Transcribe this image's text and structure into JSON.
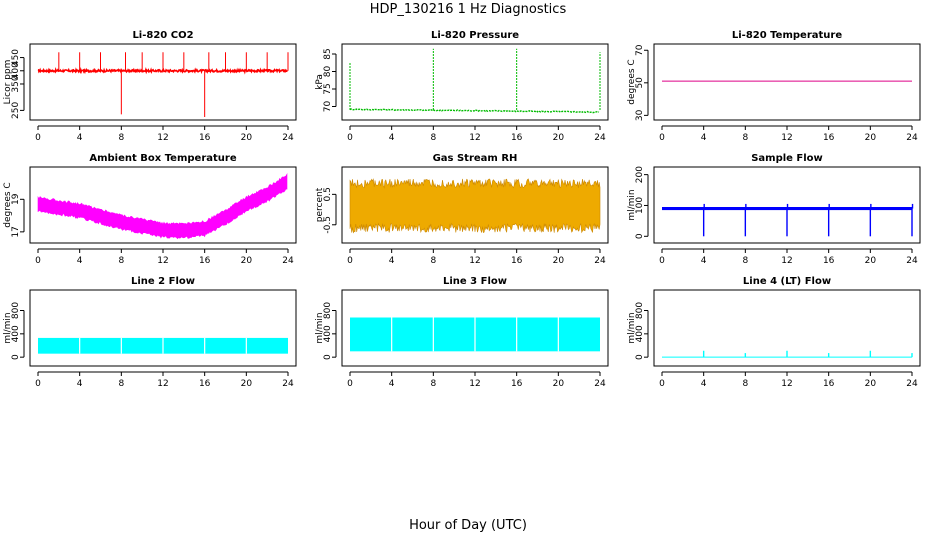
{
  "title": "HDP_130216  1 Hz Diagnostics",
  "xlabel": "Hour of Day (UTC)",
  "colors": {
    "co2": "#ff0000",
    "pressure": "#00bb00",
    "temperature": "#dd0088",
    "ambient": "#ff00ff",
    "rh": "#eeaa00",
    "sample_flow": "#0000ff",
    "line_flow": "#00ffff"
  },
  "chart_data": [
    {
      "type": "line",
      "title": "Li-820 CO2",
      "ylabel": "Licor ppm",
      "x_ticks": [
        0,
        4,
        8,
        12,
        16,
        20,
        24
      ],
      "xlim": [
        0,
        24
      ],
      "y_ticks": [
        250,
        350,
        400,
        450
      ],
      "ylim": [
        225,
        490
      ],
      "baseline": 400,
      "spikes_up": [
        2,
        4,
        6,
        8.4,
        10,
        12,
        14,
        16.4,
        18,
        20,
        22,
        24
      ],
      "spikes_down": [
        [
          8,
          235
        ],
        [
          16,
          225
        ]
      ],
      "series": [
        {
          "color_key": "co2"
        }
      ]
    },
    {
      "type": "line",
      "title": "Li-820 Pressure",
      "ylabel": "kPa",
      "x_ticks": [
        0,
        4,
        8,
        12,
        16,
        20,
        24
      ],
      "xlim": [
        0,
        24
      ],
      "y_ticks": [
        70,
        75,
        80,
        85
      ],
      "ylim": [
        67,
        87
      ],
      "baseline_start": 69.2,
      "baseline_end": 68.4,
      "spikes": [
        [
          0,
          82.5
        ],
        [
          8,
          86.5
        ],
        [
          16,
          86.5
        ],
        [
          24,
          85.5
        ]
      ],
      "series": [
        {
          "color_key": "pressure"
        }
      ]
    },
    {
      "type": "line",
      "title": "Li-820 Temperature",
      "ylabel": "degrees C",
      "x_ticks": [
        0,
        4,
        8,
        12,
        16,
        20,
        24
      ],
      "xlim": [
        0,
        24
      ],
      "y_ticks": [
        30,
        50,
        70
      ],
      "ylim": [
        29,
        72
      ],
      "value": 51,
      "series": [
        {
          "color_key": "temperature"
        }
      ]
    },
    {
      "type": "area",
      "title": "Ambient Box Temperature",
      "ylabel": "degrees C",
      "x_ticks": [
        0,
        4,
        8,
        12,
        16,
        20,
        24
      ],
      "xlim": [
        0,
        24
      ],
      "y_ticks": [
        17,
        19
      ],
      "ylim": [
        16.5,
        20.8
      ],
      "band_hours": [
        0,
        4,
        8,
        12,
        14,
        16,
        18,
        20,
        22,
        24
      ],
      "band_center": [
        18.7,
        18.3,
        17.6,
        17.1,
        17.05,
        17.2,
        17.9,
        18.7,
        19.3,
        20.1
      ],
      "band_halfwidth": 0.35,
      "series": [
        {
          "color_key": "ambient"
        }
      ]
    },
    {
      "type": "area",
      "title": "Gas Stream RH",
      "ylabel": "percent",
      "x_ticks": [
        0,
        4,
        8,
        12,
        16,
        20,
        24
      ],
      "xlim": [
        0,
        24
      ],
      "y_ticks": [
        -0.5,
        0.5
      ],
      "ylim": [
        -1.0,
        1.3
      ],
      "band": [
        -0.55,
        0.8
      ],
      "series": [
        {
          "color_key": "rh"
        }
      ]
    },
    {
      "type": "line",
      "title": "Sample Flow",
      "ylabel": "ml/min",
      "x_ticks": [
        0,
        4,
        8,
        12,
        16,
        20,
        24
      ],
      "xlim": [
        0,
        24
      ],
      "y_ticks": [
        0,
        100,
        200
      ],
      "ylim": [
        -12,
        215
      ],
      "baseline": 90,
      "dips": [
        4,
        8,
        12,
        16,
        20,
        24
      ],
      "series": [
        {
          "color_key": "sample_flow"
        }
      ]
    },
    {
      "type": "area",
      "title": "Line 2 Flow",
      "ylabel": "ml/min",
      "x_ticks": [
        0,
        4,
        8,
        12,
        16,
        20,
        24
      ],
      "xlim": [
        0,
        24
      ],
      "y_ticks": [
        0,
        400,
        800
      ],
      "ylim": [
        -100,
        1100
      ],
      "band": [
        60,
        330
      ],
      "gaps": [
        4,
        8,
        12,
        16,
        20
      ],
      "series": [
        {
          "color_key": "line_flow"
        }
      ]
    },
    {
      "type": "area",
      "title": "Line 3 Flow",
      "ylabel": "ml/min",
      "x_ticks": [
        0,
        4,
        8,
        12,
        16,
        20,
        24
      ],
      "xlim": [
        0,
        24
      ],
      "y_ticks": [
        0,
        400,
        800
      ],
      "ylim": [
        -100,
        1100
      ],
      "band": [
        100,
        680
      ],
      "gaps": [
        4,
        8,
        12,
        16,
        20
      ],
      "series": [
        {
          "color_key": "line_flow"
        }
      ]
    },
    {
      "type": "line",
      "title": "Line 4 (LT) Flow",
      "ylabel": "ml/min",
      "x_ticks": [
        0,
        4,
        8,
        12,
        16,
        20,
        24
      ],
      "xlim": [
        0,
        24
      ],
      "y_ticks": [
        0,
        400,
        800
      ],
      "ylim": [
        -100,
        1100
      ],
      "baseline": 0,
      "spikes": [
        [
          4,
          110
        ],
        [
          8,
          70
        ],
        [
          12,
          110
        ],
        [
          16,
          70
        ],
        [
          20,
          110
        ],
        [
          24,
          70
        ]
      ],
      "series": [
        {
          "color_key": "line_flow"
        }
      ]
    }
  ]
}
